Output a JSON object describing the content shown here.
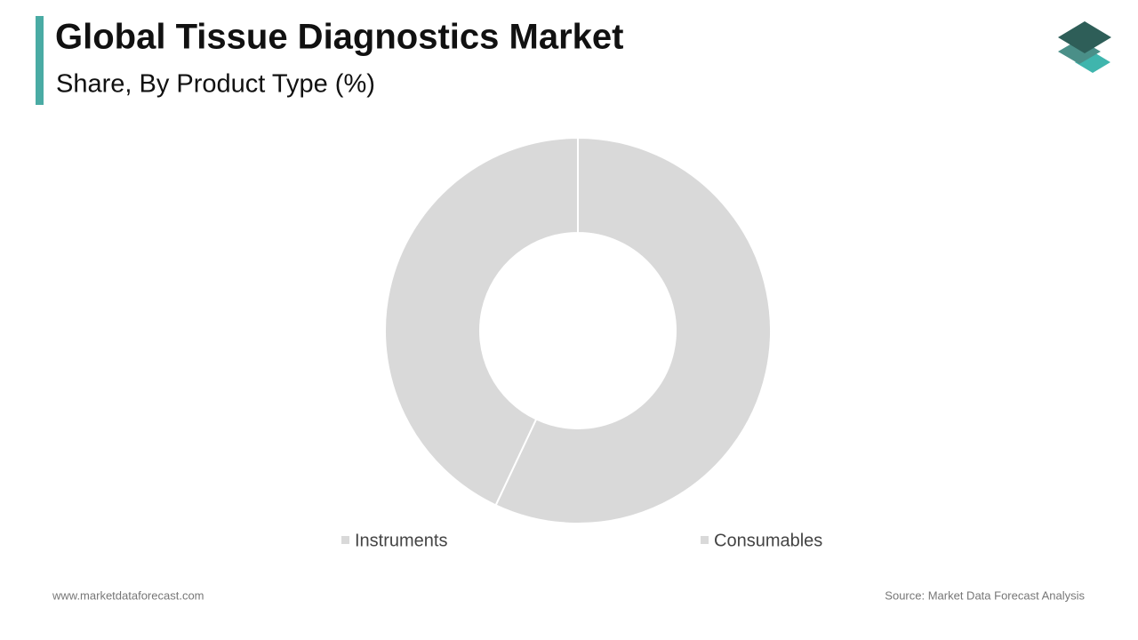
{
  "chart_data": {
    "type": "donut",
    "title": "Global Tissue Diagnostics Market",
    "subtitle": "Share, By Product Type (%)",
    "categories": [
      "Instruments",
      "Consumables"
    ],
    "values": [
      57,
      43
    ],
    "colors": [
      "#d9d9d9",
      "#d9d9d9"
    ]
  },
  "footer": {
    "website": "www.marketdataforecast.com",
    "source": "Source: Market Data Forecast Analysis"
  }
}
